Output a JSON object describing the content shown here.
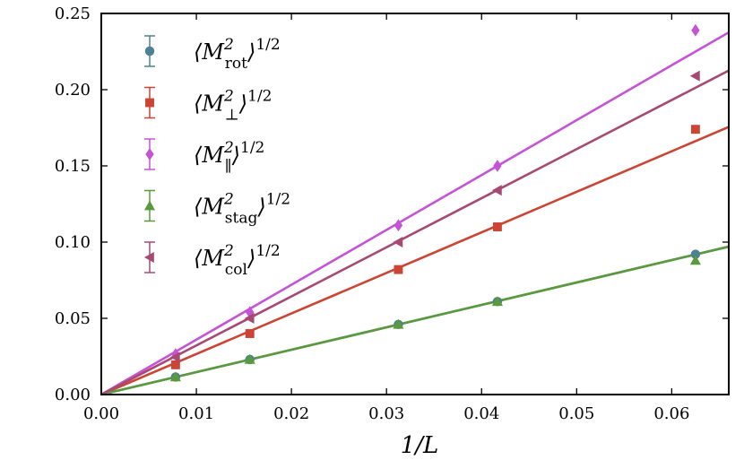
{
  "chart_data": {
    "type": "scatter",
    "title": "",
    "xlabel": "1/L",
    "ylabel": "",
    "xlim": [
      0.0,
      0.066
    ],
    "ylim": [
      0.0,
      0.25
    ],
    "xticks": [
      "0.00",
      "0.01",
      "0.02",
      "0.03",
      "0.04",
      "0.05",
      "0.06"
    ],
    "yticks": [
      "0.00",
      "0.05",
      "0.10",
      "0.15",
      "0.20",
      "0.25"
    ],
    "grid": false,
    "legend_position": "top-left",
    "series": [
      {
        "name": "⟨M²rot⟩^1/2",
        "legend_main": "⟨M",
        "legend_sup": "2",
        "legend_sub": "rot",
        "legend_tail": "⟩",
        "legend_exp": "1/2",
        "marker": "circle",
        "color": "#4c8291",
        "x": [
          0.0078125,
          0.015625,
          0.03125,
          0.041667,
          0.0625
        ],
        "y": [
          0.0115,
          0.023,
          0.046,
          0.061,
          0.092
        ],
        "fit_slope": 1.47
      },
      {
        "name": "⟨M²⊥⟩^1/2",
        "legend_main": "⟨M",
        "legend_sup": "2",
        "legend_sub": "⊥",
        "legend_tail": "⟩",
        "legend_exp": "1/2",
        "marker": "square",
        "color": "#cc4433",
        "x": [
          0.0078125,
          0.015625,
          0.03125,
          0.041667,
          0.0625
        ],
        "y": [
          0.0195,
          0.04,
          0.082,
          0.11,
          0.174
        ],
        "fit_slope": 2.66
      },
      {
        "name": "⟨M²∥⟩^1/2",
        "legend_main": "⟨M",
        "legend_sup": "2",
        "legend_sub": "∥",
        "legend_tail": "⟩",
        "legend_exp": "1/2",
        "marker": "diamond",
        "color": "#c553d6",
        "x": [
          0.0078125,
          0.015625,
          0.03125,
          0.041667,
          0.0625
        ],
        "y": [
          0.0265,
          0.054,
          0.111,
          0.15,
          0.239
        ],
        "fit_slope": 3.6
      },
      {
        "name": "⟨M²stag⟩^1/2",
        "legend_main": "⟨M",
        "legend_sup": "2",
        "legend_sub": "stag",
        "legend_tail": "⟩",
        "legend_exp": "1/2",
        "marker": "triangle-up",
        "color": "#5b9a3c",
        "x": [
          0.0078125,
          0.015625,
          0.03125,
          0.041667,
          0.0625
        ],
        "y": [
          0.0115,
          0.023,
          0.046,
          0.061,
          0.088
        ],
        "fit_slope": 1.47
      },
      {
        "name": "⟨M²col⟩^1/2",
        "legend_main": "⟨M",
        "legend_sup": "2",
        "legend_sub": "col",
        "legend_tail": "⟩",
        "legend_exp": "1/2",
        "marker": "triangle-left",
        "color": "#a64a74",
        "x": [
          0.0078125,
          0.015625,
          0.03125,
          0.041667,
          0.0625
        ],
        "y": [
          0.0245,
          0.05,
          0.1,
          0.134,
          0.209
        ],
        "fit_slope": 3.22
      }
    ]
  }
}
